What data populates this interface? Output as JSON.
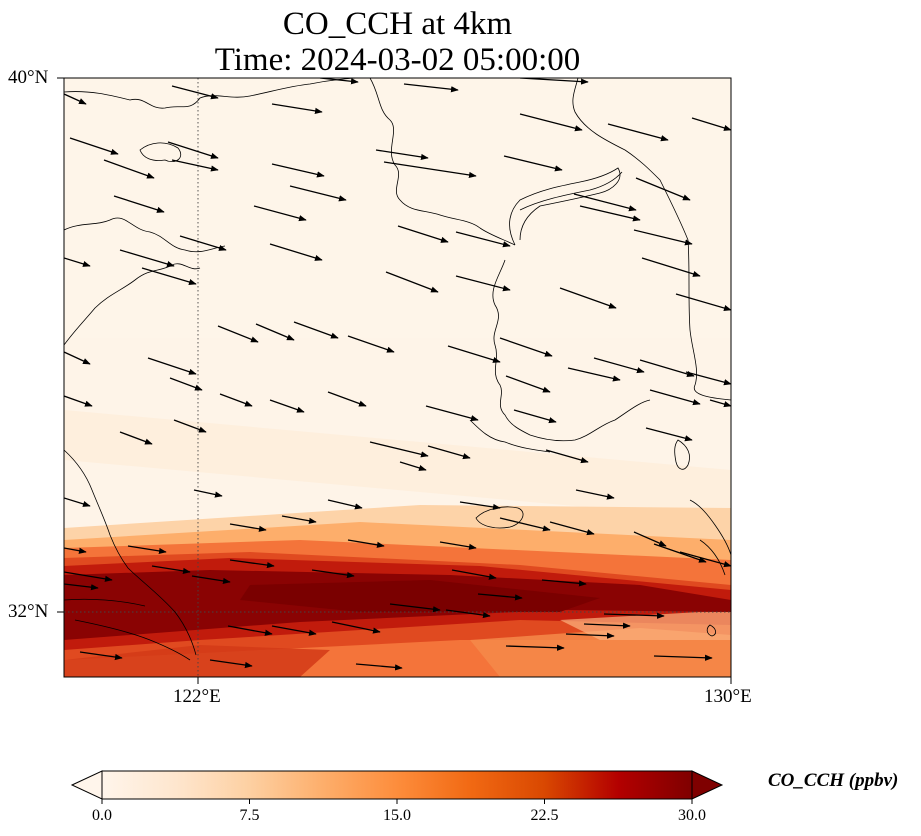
{
  "title": {
    "line1": "CO_CCH at 4km",
    "line2": "Time: 2024-03-02 05:00:00"
  },
  "map": {
    "lat_labels": [
      "40°N",
      "32°N"
    ],
    "lon_labels": [
      "122°E",
      "130°E"
    ],
    "extent": {
      "lon_min": 120,
      "lon_max": 130,
      "lat_min": 31,
      "lat_max": 40
    },
    "gridlines": {
      "lons": [
        122
      ],
      "lats": [
        32
      ],
      "style": "dotted"
    },
    "field": "CO_CCH",
    "pattern": "high concentration band across the south (about 31-33.5°N) oriented WNW-ESE, low elsewhere; wind vectors pointing east to east-southeast"
  },
  "colorbar": {
    "label": "CO_CCH (ppbv)",
    "ticks": [
      "0.0",
      "7.5",
      "15.0",
      "22.5",
      "30.0"
    ],
    "min": 0,
    "max": 30,
    "extend": "both",
    "colors": [
      "#fff5eb",
      "#fee6ce",
      "#fdd0a2",
      "#fdae6b",
      "#fd8d3c",
      "#f16913",
      "#d94801",
      "#b30000",
      "#7f0000"
    ]
  }
}
